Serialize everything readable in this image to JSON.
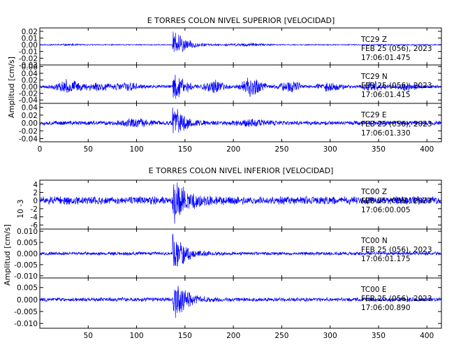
{
  "chart_data": [
    {
      "type": "line",
      "title": "E TORRES COLON NIVEL SUPERIOR [VELOCIDAD]",
      "ylabel": "Amplitud [cm/s]",
      "xlabel": "",
      "xlim": [
        0,
        415
      ],
      "xticks": [
        0,
        50,
        100,
        150,
        200,
        250,
        300,
        350,
        400
      ],
      "xticklabels": [
        "0",
        "50",
        "100",
        "150",
        "200",
        "250",
        "300",
        "350",
        "400"
      ],
      "line_color": "#0000ff",
      "traces": [
        {
          "label": "TC29   Z",
          "date": "FEB 25 (056), 2023",
          "time": "17:06:01.475",
          "ylim": [
            -0.03,
            0.025
          ],
          "yticklabels": [
            "0.02",
            "0.01",
            "0.00",
            "-0.01",
            "-0.02",
            "-0.03"
          ],
          "yticks": [
            0.02,
            0.01,
            0.0,
            -0.01,
            -0.02,
            -0.03
          ],
          "waveform": {
            "base": 0.0008,
            "peak_time": 140,
            "peak_amp": 0.022,
            "decay": 12,
            "bursts": [
              [
                215,
                0.002,
                20
              ],
              [
                30,
                0.001,
                15
              ]
            ],
            "seed": 11
          }
        },
        {
          "label": "TC29   N",
          "date": "FEB 25 (056), 2023",
          "time": "17:06:01.415",
          "ylim": [
            -0.05,
            0.065
          ],
          "yticklabels": [
            "0.06",
            "0.04",
            "0.02",
            "0.00",
            "-0.02",
            "-0.04"
          ],
          "yticks": [
            0.06,
            0.04,
            0.02,
            0.0,
            -0.02,
            -0.04
          ],
          "waveform": {
            "base": 0.005,
            "peak_time": 140,
            "peak_amp": 0.05,
            "decay": 10,
            "bursts": [
              [
                30,
                0.02,
                12
              ],
              [
                60,
                0.012,
                12
              ],
              [
                90,
                0.012,
                12
              ],
              [
                180,
                0.018,
                10
              ],
              [
                220,
                0.035,
                10
              ],
              [
                260,
                0.015,
                12
              ],
              [
                300,
                0.012,
                12
              ],
              [
                345,
                0.015,
                10
              ],
              [
                380,
                0.012,
                10
              ]
            ],
            "seed": 23
          }
        },
        {
          "label": "TC29   E",
          "date": "FEB 25 (056), 2023",
          "time": "17:06:01.330",
          "ylim": [
            -0.048,
            0.05
          ],
          "yticklabels": [
            "0.04",
            "0.02",
            "0.00",
            "-0.02",
            "-0.04"
          ],
          "yticks": [
            0.04,
            0.02,
            0.0,
            -0.02,
            -0.04
          ],
          "waveform": {
            "base": 0.006,
            "peak_time": 140,
            "peak_amp": 0.042,
            "decay": 10,
            "bursts": [
              [
                100,
                0.008,
                15
              ],
              [
                220,
                0.008,
                15
              ]
            ],
            "seed": 37
          }
        }
      ]
    },
    {
      "type": "line",
      "title": "E TORRES COLON NIVEL INFERIOR [VELOCIDAD]",
      "ylabel": "Amplitud [cm/s]",
      "xlabel": "",
      "xlim": [
        0,
        415
      ],
      "xticks": [
        50,
        100,
        150,
        200,
        250,
        300,
        350,
        400
      ],
      "xticklabels": [
        "50",
        "100",
        "150",
        "200",
        "250",
        "300",
        "350",
        "400"
      ],
      "line_color": "#0000ff",
      "traces": [
        {
          "label": "TC00   Z",
          "date": "FEB 25 (056), 2023",
          "time": "17:06:00.005",
          "ylim": [
            -7,
            5
          ],
          "scale_label": "10^-3",
          "yticklabels": [
            "4",
            "2",
            "0",
            "-2",
            "-4",
            "-6"
          ],
          "yticks": [
            4,
            2,
            0,
            -2,
            -4,
            -6
          ],
          "waveform": {
            "base": 1.1,
            "peak_time": 140,
            "peak_amp": 5.5,
            "decay": 12,
            "bursts": [],
            "seed": 51
          }
        },
        {
          "label": "TC00   N",
          "date": "FEB 25 (056), 2023",
          "time": "17:06:01.175",
          "ylim": [
            -0.011,
            0.011
          ],
          "yticklabels": [
            "0.010",
            "0.005",
            "0.000",
            "-0.005",
            "-0.010"
          ],
          "yticks": [
            0.01,
            0.005,
            0.0,
            -0.005,
            -0.01
          ],
          "waveform": {
            "base": 0.0008,
            "peak_time": 140,
            "peak_amp": 0.01,
            "decay": 10,
            "bursts": [],
            "seed": 67
          }
        },
        {
          "label": "TC00   E",
          "date": "FEB 25 (056), 2023",
          "time": "17:06:00.890",
          "ylim": [
            -0.012,
            0.009
          ],
          "yticklabels": [
            "0.005",
            "0.000",
            "-0.005",
            "-0.010"
          ],
          "yticks": [
            0.005,
            0.0,
            -0.005,
            -0.01
          ],
          "waveform": {
            "base": 0.0009,
            "peak_time": 140,
            "peak_amp": 0.011,
            "decay": 10,
            "bursts": [],
            "seed": 83
          }
        }
      ]
    }
  ]
}
